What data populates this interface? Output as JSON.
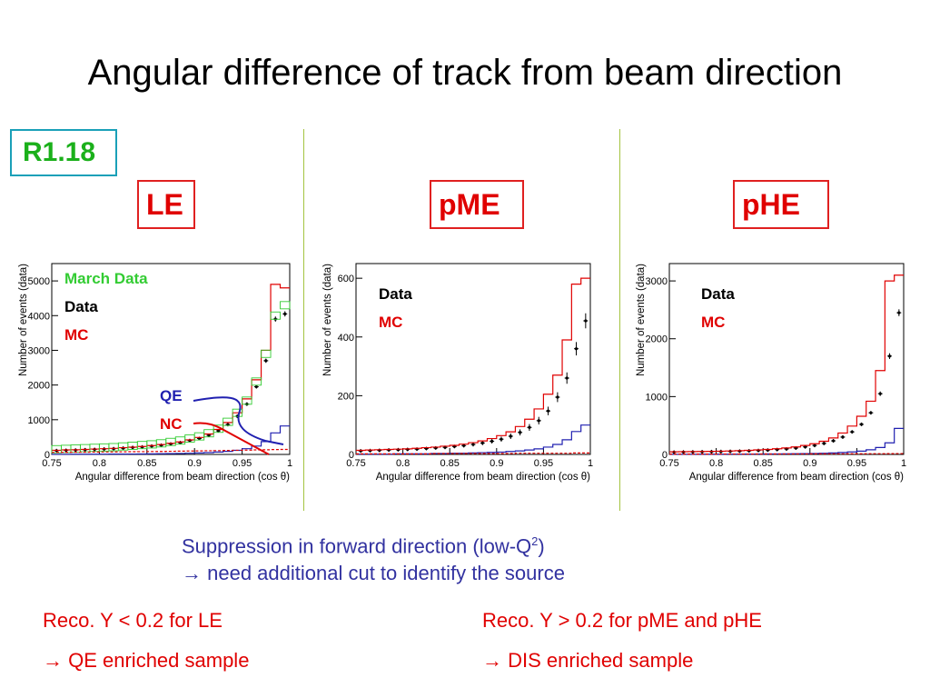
{
  "title": "Angular difference of track from beam direction",
  "tag": "R1.18",
  "panel_labels": [
    "LE",
    "pME",
    "pHE"
  ],
  "colors": {
    "data": "#000000",
    "mc": "#e00000",
    "march": "#33cc33",
    "qe": "#2020b0",
    "nc": "#e00000",
    "separator": "#a4c440",
    "tag_border": "#1aa0b8"
  },
  "legend": {
    "march": "March Data",
    "data": "Data",
    "mc": "MC",
    "qe": "QE",
    "nc": "NC"
  },
  "notes": {
    "line1_prefix": "Suppression in forward direction (low-Q",
    "line1_sup": "2",
    "line1_suffix": ")",
    "line2_arrow": "→",
    "line2": " need additional cut to identify the source"
  },
  "bottom": {
    "left_line1": "Reco. Y < 0.2 for LE",
    "left_arrow": "→",
    "left_line2": " QE enriched sample",
    "right_line1": "Reco. Y > 0.2 for pME and pHE",
    "right_arrow": "→",
    "right_line2": " DIS enriched sample"
  },
  "chart_data": [
    {
      "type": "histogram",
      "panel": "LE",
      "xlabel": "Angular difference from beam direction (cos θ)",
      "ylabel": "Number of events (data)",
      "xlim": [
        0.75,
        1.0
      ],
      "ylim": [
        0,
        5500
      ],
      "xticks": [
        0.75,
        0.8,
        0.85,
        0.9,
        0.95,
        1
      ],
      "xtick_labels": [
        "0.75",
        "0.8",
        "0.85",
        "0.9",
        "0.95",
        "1"
      ],
      "yticks": [
        0,
        1000,
        2000,
        3000,
        4000,
        5000
      ],
      "ytick_labels": [
        "0",
        "1000",
        "2000",
        "3000",
        "4000",
        "5000"
      ],
      "bin_edges": [
        0.75,
        0.76,
        0.77,
        0.78,
        0.79,
        0.8,
        0.81,
        0.82,
        0.83,
        0.84,
        0.85,
        0.86,
        0.87,
        0.88,
        0.89,
        0.9,
        0.91,
        0.92,
        0.93,
        0.94,
        0.95,
        0.96,
        0.97,
        0.98,
        0.99,
        1.0
      ],
      "series": [
        {
          "name": "Data",
          "style": "points",
          "values": [
            110,
            120,
            125,
            135,
            145,
            155,
            165,
            180,
            200,
            215,
            240,
            265,
            300,
            340,
            400,
            460,
            550,
            680,
            860,
            1100,
            1450,
            1950,
            2700,
            3900,
            4050
          ]
        },
        {
          "name": "MC",
          "style": "step",
          "values": [
            120,
            130,
            135,
            145,
            155,
            165,
            175,
            195,
            210,
            230,
            255,
            285,
            320,
            360,
            420,
            490,
            590,
            720,
            920,
            1200,
            1600,
            2150,
            3000,
            4900,
            4800
          ]
        },
        {
          "name": "March Data",
          "style": "box",
          "values": [
            150,
            160,
            170,
            180,
            190,
            200,
            210,
            230,
            250,
            270,
            290,
            320,
            360,
            400,
            460,
            520,
            610,
            740,
            940,
            1200,
            1550,
            2100,
            2900,
            4000,
            4300
          ]
        },
        {
          "name": "QE",
          "style": "step",
          "values": [
            5,
            5,
            6,
            6,
            7,
            8,
            9,
            10,
            12,
            14,
            16,
            19,
            23,
            28,
            34,
            42,
            53,
            68,
            88,
            118,
            165,
            240,
            370,
            620,
            820
          ]
        },
        {
          "name": "NC",
          "style": "dashed",
          "values": [
            60,
            62,
            64,
            66,
            68,
            70,
            72,
            75,
            78,
            80,
            83,
            86,
            90,
            94,
            98,
            102,
            106,
            110,
            115,
            120,
            125,
            130,
            135,
            140,
            145
          ]
        }
      ]
    },
    {
      "type": "histogram",
      "panel": "pME",
      "xlabel": "Angular difference from beam direction (cos θ)",
      "ylabel": "Number of events (data)",
      "xlim": [
        0.75,
        1.0
      ],
      "ylim": [
        0,
        650
      ],
      "xticks": [
        0.75,
        0.8,
        0.85,
        0.9,
        0.95,
        1
      ],
      "xtick_labels": [
        "0.75",
        "0.8",
        "0.85",
        "0.9",
        "0.95",
        "1"
      ],
      "yticks": [
        0,
        200,
        400,
        600
      ],
      "ytick_labels": [
        "0",
        "200",
        "400",
        "600"
      ],
      "bin_edges": [
        0.75,
        0.76,
        0.77,
        0.78,
        0.79,
        0.8,
        0.81,
        0.82,
        0.83,
        0.84,
        0.85,
        0.86,
        0.87,
        0.88,
        0.89,
        0.9,
        0.91,
        0.92,
        0.93,
        0.94,
        0.95,
        0.96,
        0.97,
        0.98,
        0.99,
        1.0
      ],
      "series": [
        {
          "name": "Data",
          "style": "points",
          "values": [
            12,
            13,
            14,
            15,
            16,
            17,
            18,
            20,
            22,
            24,
            27,
            30,
            34,
            39,
            45,
            52,
            62,
            75,
            92,
            115,
            148,
            195,
            260,
            360,
            455
          ]
        },
        {
          "name": "MC",
          "style": "step",
          "values": [
            14,
            15,
            16,
            17,
            18,
            19,
            21,
            23,
            25,
            28,
            31,
            35,
            40,
            46,
            54,
            64,
            77,
            95,
            120,
            155,
            205,
            270,
            390,
            580,
            600
          ]
        },
        {
          "name": "QE",
          "style": "step",
          "values": [
            1,
            1,
            1,
            1,
            2,
            2,
            2,
            2,
            3,
            3,
            4,
            4,
            5,
            6,
            7,
            8,
            10,
            12,
            15,
            19,
            25,
            34,
            50,
            78,
            100
          ]
        },
        {
          "name": "NC",
          "style": "dashed",
          "values": [
            2,
            2,
            2,
            2,
            2,
            2,
            2,
            2,
            3,
            3,
            3,
            3,
            3,
            3,
            3,
            3,
            3,
            4,
            4,
            4,
            4,
            4,
            4,
            5,
            5
          ]
        }
      ]
    },
    {
      "type": "histogram",
      "panel": "pHE",
      "xlabel": "Angular difference from beam direction (cos θ)",
      "ylabel": "Number of events (data)",
      "xlim": [
        0.75,
        1.0
      ],
      "ylim": [
        0,
        3300
      ],
      "xticks": [
        0.75,
        0.8,
        0.85,
        0.9,
        0.95,
        1
      ],
      "xtick_labels": [
        "0.75",
        "0.8",
        "0.85",
        "0.9",
        "0.95",
        "1"
      ],
      "yticks": [
        0,
        1000,
        2000,
        3000
      ],
      "ytick_labels": [
        "0",
        "1000",
        "2000",
        "3000"
      ],
      "bin_edges": [
        0.75,
        0.76,
        0.77,
        0.78,
        0.79,
        0.8,
        0.81,
        0.82,
        0.83,
        0.84,
        0.85,
        0.86,
        0.87,
        0.88,
        0.89,
        0.9,
        0.91,
        0.92,
        0.93,
        0.94,
        0.95,
        0.96,
        0.97,
        0.98,
        0.99,
        1.0
      ],
      "series": [
        {
          "name": "Data",
          "style": "points",
          "values": [
            40,
            42,
            44,
            46,
            48,
            50,
            53,
            57,
            62,
            68,
            75,
            84,
            95,
            110,
            130,
            155,
            190,
            235,
            300,
            390,
            520,
            720,
            1050,
            1700,
            2450
          ]
        },
        {
          "name": "MC",
          "style": "step",
          "values": [
            45,
            47,
            49,
            51,
            53,
            56,
            60,
            65,
            71,
            78,
            87,
            98,
            112,
            130,
            155,
            185,
            228,
            285,
            370,
            490,
            660,
            920,
            1450,
            3000,
            3100
          ]
        },
        {
          "name": "QE",
          "style": "step",
          "values": [
            3,
            3,
            3,
            4,
            4,
            4,
            5,
            5,
            6,
            7,
            8,
            9,
            10,
            12,
            14,
            17,
            21,
            26,
            33,
            43,
            57,
            80,
            120,
            200,
            450
          ]
        },
        {
          "name": "NC",
          "style": "dashed",
          "values": [
            6,
            6,
            6,
            6,
            6,
            7,
            7,
            7,
            7,
            8,
            8,
            8,
            9,
            9,
            9,
            10,
            10,
            11,
            11,
            12,
            12,
            13,
            13,
            14,
            15
          ]
        }
      ]
    }
  ]
}
